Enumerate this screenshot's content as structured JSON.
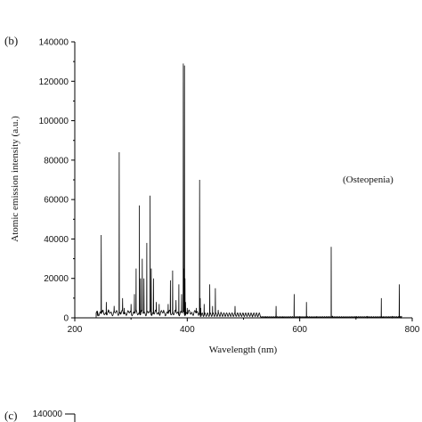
{
  "chart_data": [
    {
      "type": "line",
      "panel_label": "(b)",
      "xlabel": "Wavelength (nm)",
      "ylabel": "Atomic emission intensity (a.u.)",
      "annotation": "(Osteopenia)",
      "xlim": [
        200,
        800
      ],
      "ylim": [
        0,
        140000
      ],
      "x_ticks": [
        "200",
        "400",
        "600",
        "800"
      ],
      "y_ticks": [
        "0",
        "20000",
        "40000",
        "60000",
        "80000",
        "100000",
        "120000",
        "140000"
      ],
      "grid": false,
      "legend": "none",
      "line_color": "#000000",
      "series": [
        {
          "x": [
            240,
            245,
            247,
            250,
            256,
            260,
            270,
            279,
            281,
            285,
            288,
            300,
            306,
            309,
            315,
            317,
            320,
            323,
            328,
            334,
            336,
            340,
            345,
            350,
            358,
            366,
            370,
            374,
            380,
            385,
            390,
            393,
            394,
            395,
            396,
            397,
            400,
            408,
            416,
            422,
            423,
            424,
            430,
            440,
            445,
            450,
            455,
            460,
            480,
            485,
            490,
            500,
            516,
            525,
            540,
            558,
            570,
            590,
            600,
            612,
            630,
            656,
            658,
            700,
            720,
            745,
            748,
            765,
            777,
            780
          ],
          "y": [
            1000,
            3000,
            42000,
            3000,
            8000,
            3000,
            6000,
            84000,
            3000,
            10000,
            5000,
            7000,
            12000,
            25000,
            57000,
            20000,
            30000,
            20000,
            38000,
            62000,
            25000,
            20000,
            8000,
            7000,
            4000,
            7000,
            19000,
            24000,
            9000,
            17000,
            12000,
            129000,
            25000,
            128000,
            20000,
            8000,
            5000,
            3000,
            5000,
            70000,
            10000,
            5000,
            7000,
            17000,
            6000,
            15000,
            4000,
            3000,
            2500,
            6000,
            2000,
            1500,
            1000,
            700,
            500,
            6000,
            500,
            12000,
            500,
            8000,
            500,
            36000,
            1000,
            500,
            500,
            10000,
            500,
            500,
            17000,
            500
          ]
        }
      ]
    },
    {
      "type": "line",
      "panel_label": "(c)",
      "y_ticks": [
        "140000"
      ]
    }
  ]
}
